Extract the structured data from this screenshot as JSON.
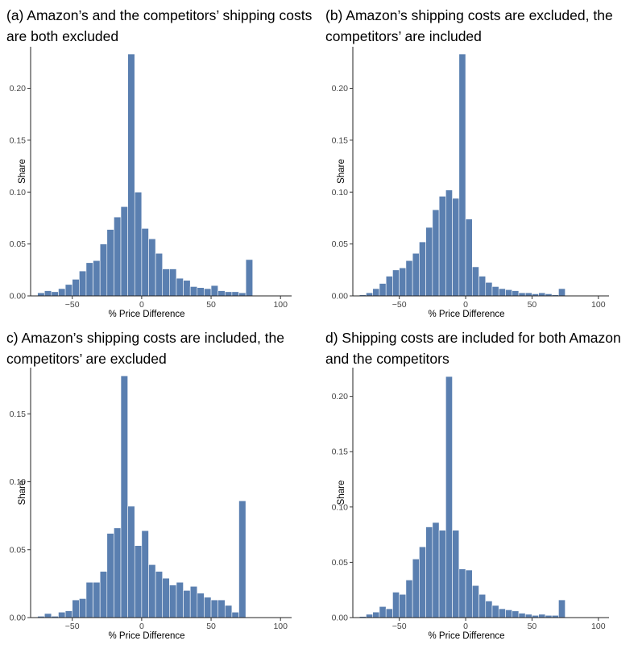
{
  "chart_data": [
    {
      "type": "bar",
      "title": "(a) Amazon’s and the competitors’ shipping costs are both excluded",
      "xlabel": "% Price Difference",
      "ylabel": "Share",
      "xlim": [
        -80,
        108
      ],
      "ylim": [
        0,
        0.24
      ],
      "xticks": [
        -50,
        0,
        50,
        100
      ],
      "xtick_labels": [
        "−50",
        "0",
        "50",
        "100"
      ],
      "yticks": [
        0,
        0.05,
        0.1,
        0.15,
        0.2
      ],
      "ytick_labels": [
        "0.00",
        "0.05",
        "0.10",
        "0.15",
        "0.20"
      ],
      "bin_width": 5,
      "bin_start": -72.5,
      "values": [
        0.003,
        0.005,
        0.004,
        0.007,
        0.011,
        0.016,
        0.024,
        0.032,
        0.034,
        0.05,
        0.064,
        0.076,
        0.086,
        0.233,
        0.1,
        0.065,
        0.055,
        0.041,
        0.026,
        0.026,
        0.017,
        0.015,
        0.009,
        0.008,
        0.007,
        0.01,
        0.005,
        0.004,
        0.004,
        0.003,
        0.035
      ],
      "grid": false,
      "color": "#5a7fb0"
    },
    {
      "type": "bar",
      "title": "(b) Amazon’s shipping costs are excluded, the competitors’ are included",
      "xlabel": "% Price Difference",
      "ylabel": "Share",
      "xlim": [
        -85,
        108
      ],
      "ylim": [
        0,
        0.24
      ],
      "xticks": [
        -50,
        0,
        50,
        100
      ],
      "xtick_labels": [
        "−50",
        "0",
        "50",
        "100"
      ],
      "yticks": [
        0,
        0.05,
        0.1,
        0.15,
        0.2
      ],
      "ytick_labels": [
        "0.00",
        "0.05",
        "0.10",
        "0.15",
        "0.20"
      ],
      "bin_width": 5,
      "bin_start": -77.5,
      "values": [
        0.001,
        0.003,
        0.007,
        0.012,
        0.019,
        0.025,
        0.027,
        0.034,
        0.041,
        0.052,
        0.066,
        0.083,
        0.096,
        0.102,
        0.094,
        0.233,
        0.074,
        0.028,
        0.019,
        0.013,
        0.009,
        0.007,
        0.006,
        0.005,
        0.003,
        0.003,
        0.002,
        0.003,
        0.002,
        0.001,
        0.007
      ],
      "grid": false,
      "color": "#5a7fb0"
    },
    {
      "type": "bar",
      "title": "c) Amazon’s shipping costs are included, the competitors’ are excluded",
      "xlabel": "% Price Difference",
      "ylabel": "Share",
      "xlim": [
        -80,
        108
      ],
      "ylim": [
        0,
        0.184
      ],
      "xticks": [
        -50,
        0,
        50,
        100
      ],
      "xtick_labels": [
        "−50",
        "0",
        "50",
        "100"
      ],
      "yticks": [
        0,
        0.05,
        0.1,
        0.15
      ],
      "ytick_labels": [
        "0.00",
        "0.05",
        "0.10",
        "0.15"
      ],
      "bin_width": 5,
      "bin_start": -72.5,
      "values": [
        0.001,
        0.003,
        0.001,
        0.004,
        0.005,
        0.013,
        0.014,
        0.026,
        0.026,
        0.034,
        0.062,
        0.066,
        0.178,
        0.082,
        0.053,
        0.064,
        0.039,
        0.034,
        0.029,
        0.024,
        0.026,
        0.02,
        0.023,
        0.018,
        0.015,
        0.013,
        0.013,
        0.009,
        0.004,
        0.086
      ],
      "grid": false,
      "color": "#5a7fb0"
    },
    {
      "type": "bar",
      "title": "d) Shipping costs are included for both Amazon and the competitors",
      "xlabel": "% Price Difference",
      "ylabel": "Share",
      "xlim": [
        -85,
        108
      ],
      "ylim": [
        0,
        0.226
      ],
      "xticks": [
        -50,
        0,
        50,
        100
      ],
      "xtick_labels": [
        "−50",
        "0",
        "50",
        "100"
      ],
      "yticks": [
        0,
        0.05,
        0.1,
        0.15,
        0.2
      ],
      "ytick_labels": [
        "0.00",
        "0.05",
        "0.10",
        "0.15",
        "0.20"
      ],
      "bin_width": 5,
      "bin_start": -77.5,
      "values": [
        0.001,
        0.003,
        0.005,
        0.01,
        0.008,
        0.023,
        0.021,
        0.034,
        0.053,
        0.064,
        0.082,
        0.086,
        0.079,
        0.218,
        0.079,
        0.044,
        0.043,
        0.029,
        0.021,
        0.015,
        0.011,
        0.008,
        0.007,
        0.006,
        0.004,
        0.003,
        0.002,
        0.003,
        0.002,
        0.002,
        0.016
      ],
      "grid": false,
      "color": "#5a7fb0"
    }
  ]
}
